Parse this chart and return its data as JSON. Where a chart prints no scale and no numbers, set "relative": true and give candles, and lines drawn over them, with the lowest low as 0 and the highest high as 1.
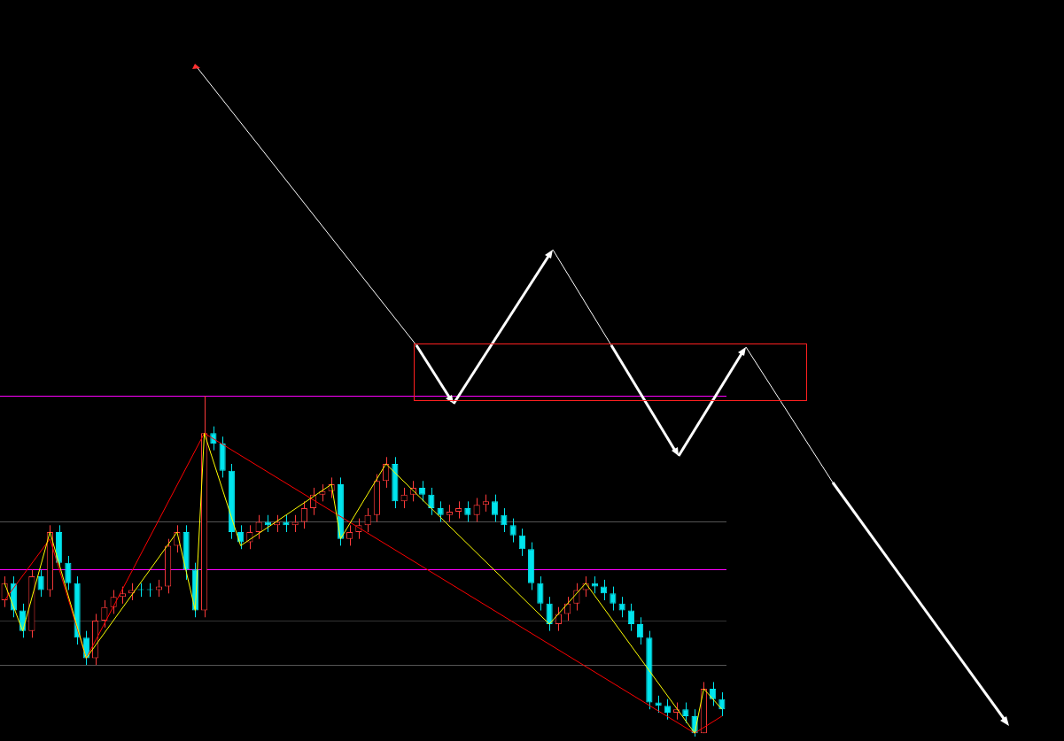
{
  "chart_data": {
    "type": "candlestick",
    "relative": true,
    "legend": false,
    "tick_labels": false,
    "marker": "none",
    "categories": [
      null,
      null,
      null,
      null,
      null,
      null,
      null,
      null,
      null,
      null,
      null,
      null,
      null,
      null,
      null,
      null,
      null,
      null,
      null,
      null,
      null,
      null,
      null,
      null,
      null,
      null,
      null,
      null,
      null,
      null,
      null,
      null,
      null,
      null,
      null,
      null,
      null,
      null,
      null,
      null,
      null,
      null,
      null,
      null,
      null,
      null,
      null,
      null,
      null,
      null,
      null,
      null,
      null,
      null,
      null,
      null,
      null,
      null,
      null,
      null,
      null,
      null,
      null,
      null,
      null,
      null,
      null,
      null,
      null,
      null,
      null,
      null,
      null,
      null,
      null,
      null,
      null,
      null,
      null,
      null
    ],
    "ohlc": [
      [
        0.4,
        0.47,
        0.38,
        0.45
      ],
      [
        0.45,
        0.47,
        0.35,
        0.37
      ],
      [
        0.37,
        0.39,
        0.29,
        0.31
      ],
      [
        0.31,
        0.49,
        0.29,
        0.47
      ],
      [
        0.47,
        0.49,
        0.41,
        0.43
      ],
      [
        0.43,
        0.62,
        0.41,
        0.6
      ],
      [
        0.6,
        0.62,
        0.5,
        0.51
      ],
      [
        0.51,
        0.53,
        0.43,
        0.45
      ],
      [
        0.45,
        0.47,
        0.27,
        0.29
      ],
      [
        0.29,
        0.31,
        0.21,
        0.23
      ],
      [
        0.23,
        0.36,
        0.21,
        0.34
      ],
      [
        0.34,
        0.4,
        0.32,
        0.38
      ],
      [
        0.38,
        0.43,
        0.36,
        0.41
      ],
      [
        0.41,
        0.44,
        0.39,
        0.42
      ],
      [
        0.42,
        0.45,
        0.4,
        0.43
      ],
      [
        0.43,
        0.45,
        0.41,
        0.43
      ],
      [
        0.43,
        0.45,
        0.41,
        0.43
      ],
      [
        0.43,
        0.46,
        0.41,
        0.44
      ],
      [
        0.44,
        0.58,
        0.42,
        0.56
      ],
      [
        0.56,
        0.62,
        0.54,
        0.6
      ],
      [
        0.6,
        0.62,
        0.46,
        0.49
      ],
      [
        0.49,
        0.51,
        0.35,
        0.37
      ],
      [
        0.37,
        1.0,
        0.35,
        0.89
      ],
      [
        0.89,
        0.91,
        0.84,
        0.86
      ],
      [
        0.86,
        0.88,
        0.76,
        0.78
      ],
      [
        0.78,
        0.8,
        0.58,
        0.6
      ],
      [
        0.6,
        0.62,
        0.55,
        0.57
      ],
      [
        0.57,
        0.62,
        0.55,
        0.6
      ],
      [
        0.6,
        0.65,
        0.58,
        0.63
      ],
      [
        0.63,
        0.65,
        0.6,
        0.62
      ],
      [
        0.62,
        0.65,
        0.6,
        0.63
      ],
      [
        0.63,
        0.65,
        0.6,
        0.62
      ],
      [
        0.62,
        0.65,
        0.6,
        0.63
      ],
      [
        0.63,
        0.69,
        0.61,
        0.67
      ],
      [
        0.67,
        0.73,
        0.65,
        0.71
      ],
      [
        0.71,
        0.74,
        0.69,
        0.72
      ],
      [
        0.72,
        0.76,
        0.7,
        0.74
      ],
      [
        0.74,
        0.76,
        0.56,
        0.58
      ],
      [
        0.58,
        0.62,
        0.56,
        0.6
      ],
      [
        0.6,
        0.64,
        0.58,
        0.62
      ],
      [
        0.62,
        0.67,
        0.6,
        0.65
      ],
      [
        0.65,
        0.77,
        0.63,
        0.75
      ],
      [
        0.75,
        0.82,
        0.73,
        0.8
      ],
      [
        0.8,
        0.82,
        0.67,
        0.69
      ],
      [
        0.69,
        0.73,
        0.67,
        0.71
      ],
      [
        0.71,
        0.75,
        0.69,
        0.73
      ],
      [
        0.73,
        0.75,
        0.69,
        0.71
      ],
      [
        0.71,
        0.73,
        0.65,
        0.67
      ],
      [
        0.67,
        0.69,
        0.63,
        0.65
      ],
      [
        0.65,
        0.68,
        0.63,
        0.66
      ],
      [
        0.66,
        0.69,
        0.64,
        0.67
      ],
      [
        0.67,
        0.69,
        0.63,
        0.65
      ],
      [
        0.65,
        0.7,
        0.63,
        0.68
      ],
      [
        0.68,
        0.71,
        0.66,
        0.69
      ],
      [
        0.69,
        0.71,
        0.63,
        0.65
      ],
      [
        0.65,
        0.67,
        0.6,
        0.62
      ],
      [
        0.62,
        0.64,
        0.57,
        0.59
      ],
      [
        0.59,
        0.61,
        0.53,
        0.55
      ],
      [
        0.55,
        0.57,
        0.43,
        0.45
      ],
      [
        0.45,
        0.47,
        0.37,
        0.39
      ],
      [
        0.39,
        0.41,
        0.31,
        0.33
      ],
      [
        0.33,
        0.38,
        0.31,
        0.36
      ],
      [
        0.36,
        0.41,
        0.34,
        0.39
      ],
      [
        0.39,
        0.45,
        0.37,
        0.43
      ],
      [
        0.43,
        0.47,
        0.41,
        0.45
      ],
      [
        0.45,
        0.47,
        0.42,
        0.44
      ],
      [
        0.44,
        0.46,
        0.4,
        0.42
      ],
      [
        0.42,
        0.44,
        0.37,
        0.39
      ],
      [
        0.39,
        0.41,
        0.35,
        0.37
      ],
      [
        0.37,
        0.39,
        0.31,
        0.33
      ],
      [
        0.33,
        0.35,
        0.27,
        0.29
      ],
      [
        0.29,
        0.31,
        0.08,
        0.1
      ],
      [
        0.1,
        0.12,
        0.07,
        0.09
      ],
      [
        0.09,
        0.11,
        0.05,
        0.07
      ],
      [
        0.07,
        0.1,
        0.05,
        0.08
      ],
      [
        0.08,
        0.1,
        0.04,
        0.06
      ],
      [
        0.06,
        0.08,
        0.0,
        0.01
      ],
      [
        0.01,
        0.16,
        0.01,
        0.14
      ],
      [
        0.14,
        0.16,
        0.09,
        0.11
      ],
      [
        0.11,
        0.13,
        0.06,
        0.08
      ]
    ],
    "colors": [
      "#ff3b3b",
      "#00e5ee",
      "#00e5ee",
      "#ff3b3b",
      "#00e5ee",
      "#ff3b3b",
      "#00e5ee",
      "#00e5ee",
      "#00e5ee",
      "#00e5ee",
      "#ff3b3b",
      "#ff3b3b",
      "#ff3b3b",
      "#ff3b3b",
      "#ff3b3b",
      "#00e5ee",
      "#00e5ee",
      "#ff3b3b",
      "#ff3b3b",
      "#ff3b3b",
      "#00e5ee",
      "#00e5ee",
      "#ff3b3b",
      "#00e5ee",
      "#00e5ee",
      "#00e5ee",
      "#00e5ee",
      "#ff3b3b",
      "#ff3b3b",
      "#00e5ee",
      "#ff3b3b",
      "#00e5ee",
      "#ff3b3b",
      "#ff3b3b",
      "#ff3b3b",
      "#ff3b3b",
      "#ff3b3b",
      "#00e5ee",
      "#ff3b3b",
      "#ff3b3b",
      "#ff3b3b",
      "#ff3b3b",
      "#ff3b3b",
      "#00e5ee",
      "#ff3b3b",
      "#ff3b3b",
      "#00e5ee",
      "#00e5ee",
      "#00e5ee",
      "#ff3b3b",
      "#ff3b3b",
      "#00e5ee",
      "#ff3b3b",
      "#ff3b3b",
      "#00e5ee",
      "#00e5ee",
      "#00e5ee",
      "#00e5ee",
      "#00e5ee",
      "#00e5ee",
      "#00e5ee",
      "#ff3b3b",
      "#ff3b3b",
      "#ff3b3b",
      "#ff3b3b",
      "#00e5ee",
      "#00e5ee",
      "#00e5ee",
      "#00e5ee",
      "#00e5ee",
      "#00e5ee",
      "#00e5ee",
      "#00e5ee",
      "#00e5ee",
      "#ff3b3b",
      "#00e5ee",
      "#00e5ee",
      "#ff3b3b",
      "#00e5ee",
      "#00e5ee"
    ],
    "series": [
      {
        "type": "line",
        "color": "#ffff00",
        "values": [
          0.45,
          null,
          0.31,
          null,
          null,
          0.6,
          null,
          null,
          null,
          0.23,
          null,
          null,
          null,
          null,
          null,
          null,
          null,
          null,
          null,
          0.6,
          null,
          0.37,
          0.89,
          null,
          null,
          null,
          0.56,
          null,
          null,
          null,
          null,
          null,
          null,
          null,
          null,
          null,
          0.74,
          0.58,
          null,
          null,
          null,
          null,
          0.8,
          null,
          null,
          null,
          null,
          null,
          null,
          null,
          null,
          null,
          null,
          null,
          null,
          null,
          null,
          null,
          null,
          null,
          0.33,
          null,
          null,
          null,
          0.45,
          null,
          null,
          null,
          null,
          null,
          null,
          null,
          null,
          null,
          null,
          null,
          0.01,
          0.14,
          null,
          0.08
        ]
      },
      {
        "type": "line",
        "color": "#ff0000",
        "values": [
          0.4,
          null,
          null,
          null,
          null,
          0.58,
          null,
          null,
          null,
          0.23,
          null,
          null,
          null,
          null,
          null,
          null,
          null,
          null,
          null,
          null,
          null,
          null,
          0.89,
          null,
          null,
          null,
          null,
          null,
          null,
          null,
          null,
          null,
          null,
          null,
          null,
          null,
          null,
          null,
          null,
          null,
          null,
          null,
          null,
          null,
          null,
          null,
          null,
          null,
          null,
          null,
          null,
          null,
          null,
          null,
          null,
          null,
          null,
          null,
          null,
          null,
          null,
          null,
          null,
          null,
          null,
          null,
          null,
          null,
          null,
          null,
          null,
          null,
          null,
          null,
          null,
          null,
          0.01,
          null,
          null,
          0.06
        ]
      }
    ],
    "ref_lines": [
      {
        "axis": "y",
        "value": 1.0,
        "color": "#ff00ff"
      },
      {
        "axis": "y",
        "value": 0.49,
        "color": "#ff00ff"
      },
      {
        "axis": "y",
        "value": 0.34,
        "color": "#333333"
      },
      {
        "axis": "y",
        "value": 0.63,
        "color": "#555555"
      },
      {
        "axis": "y",
        "value": 0.21,
        "color": "#555555"
      }
    ]
  }
}
